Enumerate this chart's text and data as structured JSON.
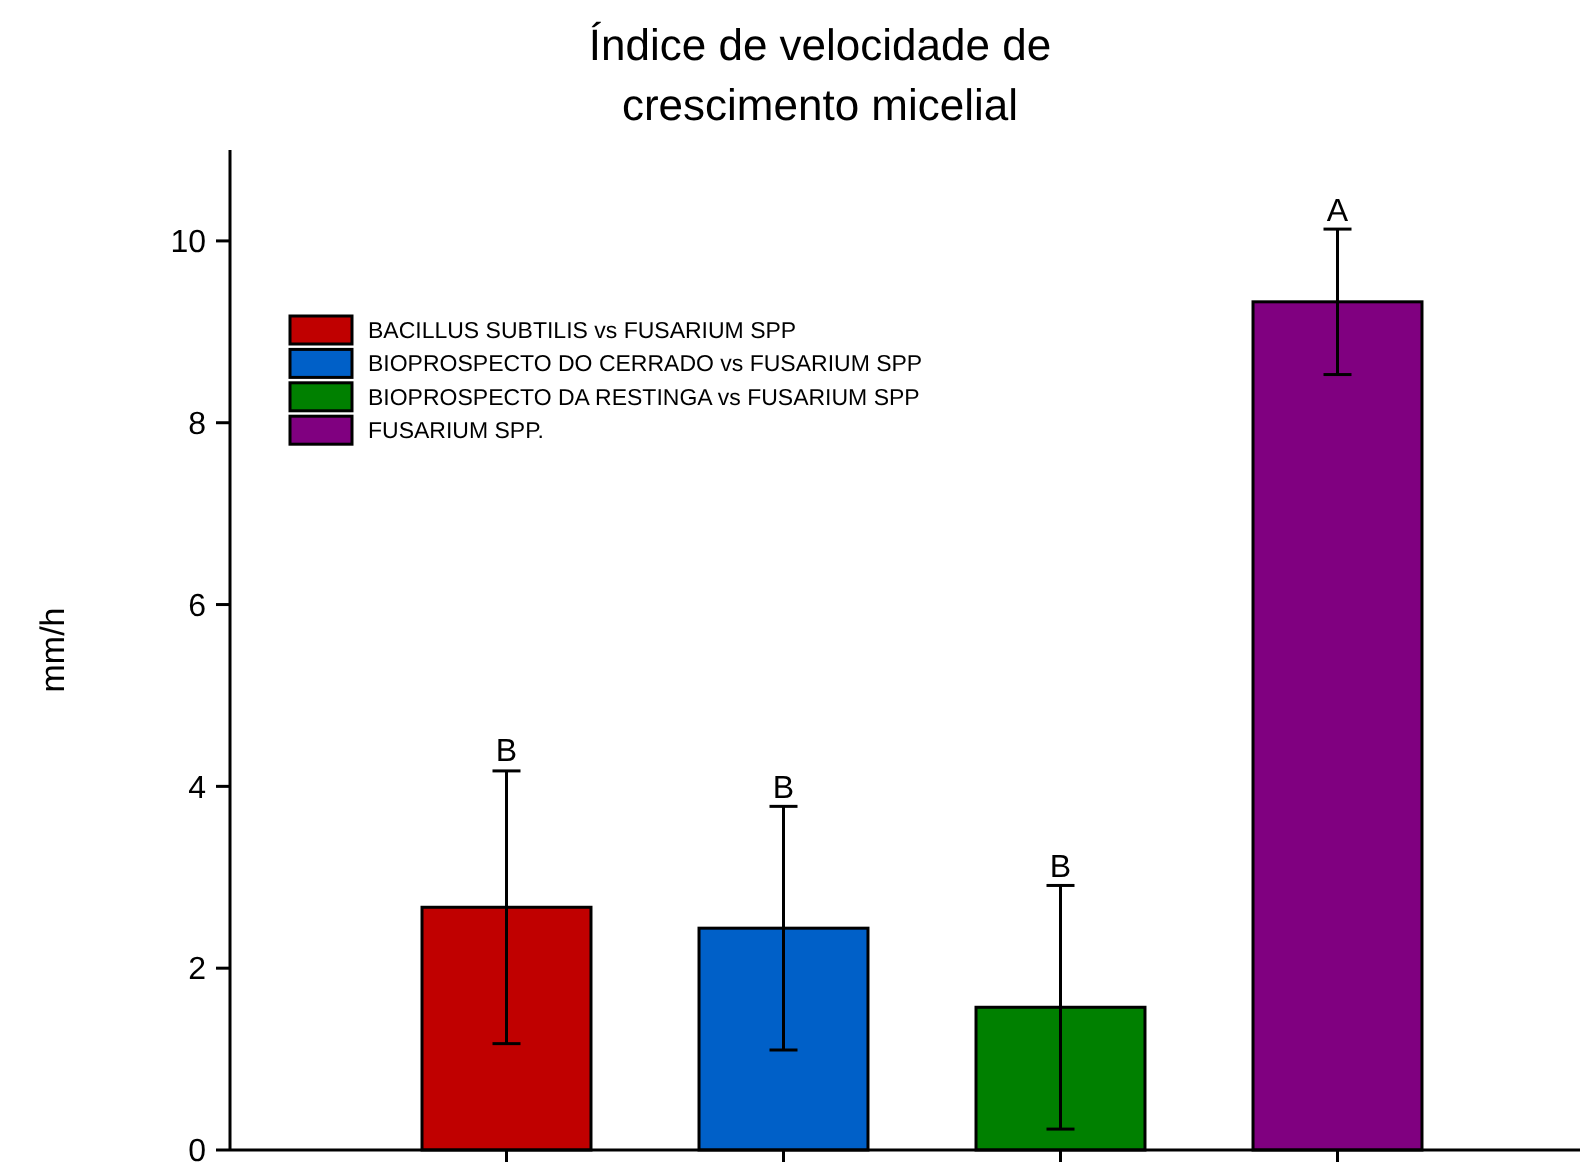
{
  "chart_data": {
    "type": "bar",
    "title": "Índice de velocidade de\ncrescimento micelial",
    "ylabel": "mm/h",
    "categories": [
      null,
      null,
      null,
      null
    ],
    "series": [
      {
        "name": "BACILLUS SUBTILIS vs FUSARIUM SPP",
        "color": "#c00000",
        "values": [
          2.67,
          null,
          null,
          null
        ],
        "errors": [
          1.5,
          null,
          null,
          null
        ]
      },
      {
        "name": "BIOPROSPECTO DO CERRADO vs FUSARIUM SPP",
        "color": "#0060c8",
        "values": [
          null,
          2.44,
          null,
          null
        ],
        "errors": [
          null,
          1.34,
          null,
          null
        ]
      },
      {
        "name": "BIOPROSPECTO DA RESTINGA vs FUSARIUM SPP",
        "color": "#008000",
        "values": [
          null,
          null,
          1.57,
          null
        ],
        "errors": [
          null,
          null,
          1.34,
          null
        ]
      },
      {
        "name": "FUSARIUM SPP.",
        "color": "#800080",
        "values": [
          null,
          null,
          null,
          9.33
        ],
        "errors": [
          null,
          null,
          null,
          0.8
        ]
      }
    ],
    "annotations": [
      {
        "text": "B",
        "y": 4.19
      },
      {
        "text": "B",
        "y": 3.78
      },
      {
        "text": "B",
        "y": 2.91
      },
      {
        "text": "A",
        "y": 10.13
      }
    ],
    "ylim": [
      0,
      11
    ],
    "yticks": [
      0,
      2,
      4,
      6,
      8,
      10
    ],
    "grid": false,
    "legend": "top left"
  }
}
